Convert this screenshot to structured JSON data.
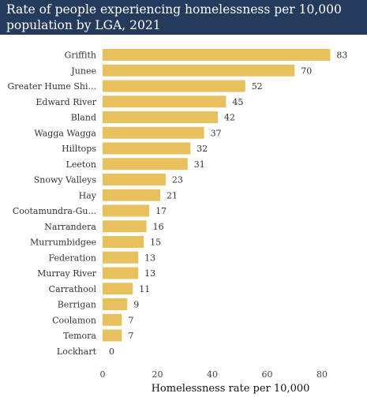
{
  "chart_data": {
    "type": "bar",
    "orientation": "horizontal",
    "title_line1": "Rate of people experiencing homelessness per 10,000",
    "title_line2": "population by LGA, 2021",
    "xlabel": "Homelessness rate per 10,000",
    "categories": [
      "Griffith",
      "Junee",
      "Greater Hume Shi...",
      "Edward River",
      "Bland",
      "Wagga Wagga",
      "Hilltops",
      "Leeton",
      "Snowy Valleys",
      "Hay",
      "Cootamundra-Gu...",
      "Narrandera",
      "Murrumbidgee",
      "Federation",
      "Murray River",
      "Carrathool",
      "Berrigan",
      "Coolamon",
      "Temora",
      "Lockhart"
    ],
    "values": [
      83,
      70,
      52,
      45,
      42,
      37,
      32,
      31,
      23,
      21,
      17,
      16,
      15,
      13,
      13,
      11,
      9,
      7,
      7,
      0
    ],
    "xlim": [
      0,
      85
    ],
    "xticks": [
      0,
      20,
      40,
      60,
      80
    ],
    "grid": false,
    "bar_color": "#e8c15f"
  }
}
